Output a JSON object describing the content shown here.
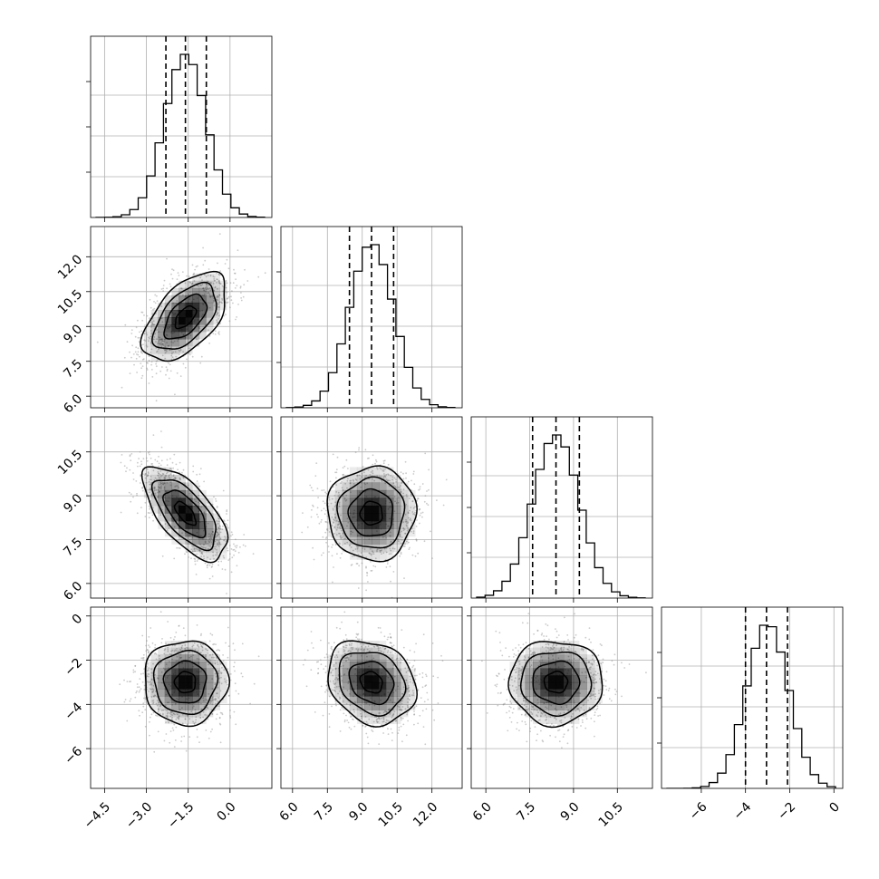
{
  "chart_data": {
    "type": "corner",
    "parameters": [
      {
        "id": "p0",
        "range": [
          -5.0,
          1.5
        ],
        "mean": -1.6,
        "std": 0.75,
        "quantiles": [
          -2.3,
          -1.6,
          -0.85
        ],
        "ticks": [
          -4.5,
          -3.0,
          -1.5,
          0.0
        ],
        "tick_labels": [
          "−4.5",
          "−3.0",
          "−1.5",
          "0.0"
        ]
      },
      {
        "id": "p1",
        "range": [
          5.5,
          13.3
        ],
        "mean": 9.4,
        "std": 0.95,
        "quantiles": [
          8.45,
          9.4,
          10.35
        ],
        "ticks": [
          6.0,
          7.5,
          9.0,
          10.5,
          12.0
        ],
        "tick_labels": [
          "6.0",
          "7.5",
          "9.0",
          "10.5",
          "12.0"
        ]
      },
      {
        "id": "p2",
        "range": [
          5.5,
          11.7
        ],
        "mean": 8.4,
        "std": 0.8,
        "quantiles": [
          7.6,
          8.4,
          9.2
        ],
        "ticks": [
          6.0,
          7.5,
          9.0,
          10.5
        ],
        "tick_labels": [
          "6.0",
          "7.5",
          "9.0",
          "10.5"
        ]
      },
      {
        "id": "p3",
        "range": [
          -7.8,
          0.4
        ],
        "mean": -3.0,
        "std": 0.95,
        "quantiles": [
          -4.0,
          -3.05,
          -2.1
        ],
        "ticks": [
          -6,
          -4,
          -2,
          0
        ],
        "tick_labels": [
          "−6",
          "−4",
          "−2",
          "0"
        ]
      }
    ],
    "correlations": {
      "0-1": 0.55,
      "0-2": -0.65,
      "0-3": 0.0,
      "1-2": 0.0,
      "1-3": -0.2,
      "2-3": 0.0
    },
    "histogram_bins": 20,
    "contour_levels_sigma": [
      0.5,
      1.0,
      1.5,
      2.0
    ],
    "grid": true,
    "colors": {
      "contour": "#000000",
      "scatter": "#8c8c8c",
      "density": "#000000",
      "grid": "#b0b0b0"
    }
  }
}
